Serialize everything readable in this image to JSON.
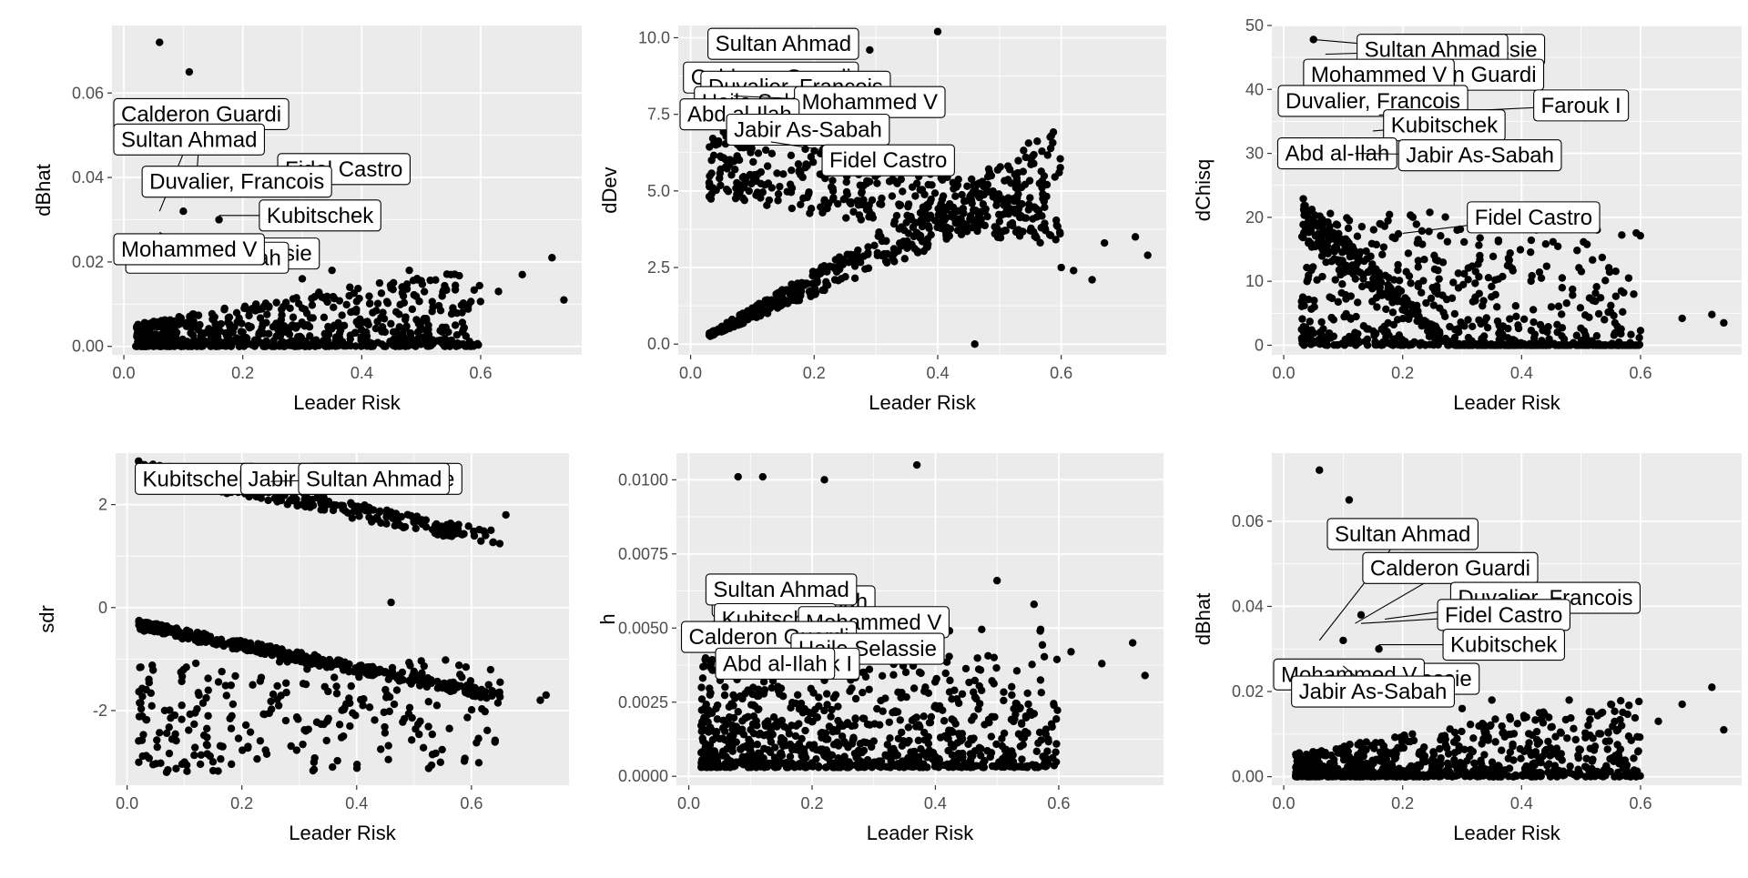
{
  "figure": {
    "background": "#ffffff",
    "panel_background": "#ebebeb",
    "grid_color": "#ffffff",
    "point_color": "#000000",
    "label_fill": "#ffffff",
    "label_border": "#000000"
  },
  "chart_data": [
    {
      "type": "scatter",
      "xlabel": "Leader Risk",
      "ylabel": "dBhat",
      "xlim": [
        -0.02,
        0.77
      ],
      "ylim": [
        -0.002,
        0.076
      ],
      "x_ticks": [
        0.0,
        0.2,
        0.4,
        0.6
      ],
      "x_tick_labels": [
        "0.0",
        "0.2",
        "0.4",
        "0.6"
      ],
      "y_ticks": [
        0.0,
        0.02,
        0.04,
        0.06
      ],
      "y_tick_labels": [
        "0.00",
        "0.02",
        "0.04",
        "0.06"
      ],
      "points": [
        [
          0.06,
          0.072
        ],
        [
          0.11,
          0.065
        ],
        [
          0.72,
          0.021
        ],
        [
          0.74,
          0.011
        ],
        [
          0.67,
          0.017
        ],
        [
          0.63,
          0.013
        ],
        [
          0.55,
          0.017
        ],
        [
          0.48,
          0.018
        ],
        [
          0.43,
          0.015
        ],
        [
          0.38,
          0.014
        ],
        [
          0.35,
          0.018
        ],
        [
          0.3,
          0.016
        ],
        [
          0.22,
          0.02
        ],
        [
          0.16,
          0.03
        ],
        [
          0.13,
          0.038
        ],
        [
          0.1,
          0.032
        ]
      ],
      "cluster": {
        "count": 750,
        "x_range": [
          0.02,
          0.6
        ],
        "y_max": 0.02
      },
      "labels": [
        {
          "text": "Calderon Guardi",
          "x": 0.12,
          "y": 0.036,
          "lx": 0.11,
          "ly": 0.055
        },
        {
          "text": "Sultan Ahmad",
          "x": 0.06,
          "y": 0.032,
          "lx": 0.05,
          "ly": 0.049
        },
        {
          "text": "Fidel Castro",
          "x": 0.13,
          "y": 0.036,
          "lx": 0.37,
          "ly": 0.042
        },
        {
          "text": "Duvalier, Francois",
          "x": 0.17,
          "y": 0.037,
          "lx": 0.19,
          "ly": 0.039
        },
        {
          "text": "Kubitschek",
          "x": 0.16,
          "y": 0.031,
          "lx": 0.33,
          "ly": 0.031
        },
        {
          "text": "Haile Selassie",
          "x": 0.12,
          "y": 0.024,
          "lx": 0.2,
          "ly": 0.022
        },
        {
          "text": "Jabir As-Sabah",
          "x": 0.1,
          "y": 0.026,
          "lx": 0.14,
          "ly": 0.021
        },
        {
          "text": "Mohammed V",
          "x": 0.06,
          "y": 0.027,
          "lx": 0.07,
          "ly": 0.023
        }
      ]
    },
    {
      "type": "scatter",
      "xlabel": "Leader Risk",
      "ylabel": "dDev",
      "xlim": [
        -0.02,
        0.77
      ],
      "ylim": [
        -0.35,
        10.4
      ],
      "x_ticks": [
        0.0,
        0.2,
        0.4,
        0.6
      ],
      "x_tick_labels": [
        "0.0",
        "0.2",
        "0.4",
        "0.6"
      ],
      "y_ticks": [
        0.0,
        2.5,
        5.0,
        7.5,
        10.0
      ],
      "y_tick_labels": [
        "0.0",
        "2.5",
        "5.0",
        "7.5",
        "10.0"
      ],
      "points": [
        [
          0.4,
          10.2
        ],
        [
          0.29,
          9.6
        ],
        [
          0.46,
          0.0
        ],
        [
          0.72,
          3.5
        ],
        [
          0.74,
          2.9
        ],
        [
          0.67,
          3.3
        ],
        [
          0.57,
          4.9
        ],
        [
          0.55,
          3.7
        ],
        [
          0.62,
          2.4
        ],
        [
          0.65,
          2.1
        ],
        [
          0.6,
          2.5
        ],
        [
          0.5,
          4.0
        ]
      ],
      "cluster": {
        "count": 900,
        "x_range": [
          0.03,
          0.6
        ],
        "y_max": 8.0
      },
      "labels": [
        {
          "text": "Sultan Ahmad",
          "x": 0.06,
          "y": 9.4,
          "lx": 0.15,
          "ly": 9.8
        },
        {
          "text": "Calderon Guardi",
          "x": 0.1,
          "y": 8.6,
          "lx": 0.13,
          "ly": 8.7
        },
        {
          "text": "Duvalier, Francois",
          "x": 0.12,
          "y": 8.4,
          "lx": 0.17,
          "ly": 8.4
        },
        {
          "text": "Haile Selassie",
          "x": 0.1,
          "y": 7.9,
          "lx": 0.13,
          "ly": 7.9
        },
        {
          "text": "Mohammed V",
          "x": 0.07,
          "y": 8.1,
          "lx": 0.29,
          "ly": 7.9
        },
        {
          "text": "Abd al-Ilah",
          "x": 0.05,
          "y": 7.3,
          "lx": 0.06,
          "ly": 7.5
        },
        {
          "text": "Jabir As-Sabah",
          "x": 0.1,
          "y": 7.2,
          "lx": 0.19,
          "ly": 7.0
        },
        {
          "text": "Fidel Castro",
          "x": 0.13,
          "y": 6.6,
          "lx": 0.32,
          "ly": 6.0
        }
      ]
    },
    {
      "type": "scatter",
      "xlabel": "Leader Risk",
      "ylabel": "dChisq",
      "xlim": [
        -0.02,
        0.77
      ],
      "ylim": [
        -1.5,
        50
      ],
      "x_ticks": [
        0.0,
        0.2,
        0.4,
        0.6
      ],
      "x_tick_labels": [
        "0.0",
        "0.2",
        "0.4",
        "0.6"
      ],
      "y_ticks": [
        0,
        10,
        20,
        30,
        40,
        50
      ],
      "y_tick_labels": [
        "0",
        "10",
        "20",
        "30",
        "40",
        "50"
      ],
      "points": [
        [
          0.05,
          47.8
        ],
        [
          0.72,
          4.8
        ],
        [
          0.74,
          3.5
        ],
        [
          0.67,
          4.2
        ],
        [
          0.58,
          10.5
        ],
        [
          0.52,
          7.0
        ],
        [
          0.45,
          6.0
        ],
        [
          0.6,
          2.3
        ]
      ],
      "cluster": {
        "count": 900,
        "x_range": [
          0.03,
          0.6
        ],
        "y_max": 26
      },
      "labels": [
        {
          "text": "Haile Selassie",
          "x": 0.07,
          "y": 45.5,
          "lx": 0.31,
          "ly": 46.2
        },
        {
          "text": "Sultan Ahmad",
          "x": 0.05,
          "y": 47.8,
          "lx": 0.25,
          "ly": 46.2
        },
        {
          "text": "Calderon Guardi",
          "x": 0.12,
          "y": 42.0,
          "lx": 0.29,
          "ly": 42.3
        },
        {
          "text": "Mohammed V",
          "x": 0.08,
          "y": 40.5,
          "lx": 0.16,
          "ly": 42.3
        },
        {
          "text": "Duvalier, Francois",
          "x": 0.11,
          "y": 38.0,
          "lx": 0.15,
          "ly": 38.2
        },
        {
          "text": "Farouk I",
          "x": 0.16,
          "y": 36.0,
          "lx": 0.5,
          "ly": 37.5
        },
        {
          "text": "Kubitschek",
          "x": 0.15,
          "y": 33.5,
          "lx": 0.27,
          "ly": 34.4
        },
        {
          "text": "Abd al-Ilah",
          "x": 0.05,
          "y": 30.5,
          "lx": 0.09,
          "ly": 30.0
        },
        {
          "text": "Jabir As-Sabah",
          "x": 0.12,
          "y": 30.0,
          "lx": 0.33,
          "ly": 29.7
        },
        {
          "text": "Fidel Castro",
          "x": 0.2,
          "y": 17.5,
          "lx": 0.42,
          "ly": 20.0
        }
      ]
    },
    {
      "type": "scatter",
      "xlabel": "Leader Risk",
      "ylabel": "sdr",
      "xlim": [
        -0.02,
        0.77
      ],
      "ylim": [
        -3.45,
        3.0
      ],
      "x_ticks": [
        0.0,
        0.2,
        0.4,
        0.6
      ],
      "x_tick_labels": [
        "0.0",
        "0.2",
        "0.4",
        "0.6"
      ],
      "y_ticks": [
        -2,
        0,
        2
      ],
      "y_tick_labels": [
        "-2",
        "0",
        "2"
      ],
      "points": [
        [
          0.46,
          0.1
        ],
        [
          0.72,
          -1.8
        ],
        [
          0.73,
          -1.7
        ],
        [
          0.66,
          1.8
        ],
        [
          0.1,
          -3.0
        ],
        [
          0.58,
          -1.3
        ],
        [
          0.63,
          -1.5
        ],
        [
          0.65,
          -1.45
        ]
      ],
      "cluster": {
        "count": 900,
        "x_range": [
          0.02,
          0.65
        ],
        "y_max": 0
      },
      "labels": [
        {
          "text": "Kubitschek",
          "x": 0.13,
          "y": 2.5,
          "lx": 0.12,
          "ly": 2.5
        },
        {
          "text": "Jabir As-Sabah",
          "x": 0.2,
          "y": 2.4,
          "lx": 0.34,
          "ly": 2.5
        },
        {
          "text": "Haile Selassie",
          "x": 0.25,
          "y": 2.45,
          "lx": 0.45,
          "ly": 2.5
        },
        {
          "text": "Sultan Ahmad",
          "x": 0.3,
          "y": 2.5,
          "lx": 0.43,
          "ly": 2.5
        }
      ]
    },
    {
      "type": "scatter",
      "xlabel": "Leader Risk",
      "ylabel": "h",
      "xlim": [
        -0.02,
        0.77
      ],
      "ylim": [
        -0.0003,
        0.0109
      ],
      "x_ticks": [
        0.0,
        0.2,
        0.4,
        0.6
      ],
      "x_tick_labels": [
        "0.0",
        "0.2",
        "0.4",
        "0.6"
      ],
      "y_ticks": [
        0.0,
        0.0025,
        0.005,
        0.0075,
        0.01
      ],
      "y_tick_labels": [
        "0.0000",
        "0.0025",
        "0.0050",
        "0.0075",
        "0.0100"
      ],
      "points": [
        [
          0.37,
          0.0105
        ],
        [
          0.08,
          0.0101
        ],
        [
          0.12,
          0.0101
        ],
        [
          0.22,
          0.01
        ],
        [
          0.72,
          0.0045
        ],
        [
          0.74,
          0.0034
        ],
        [
          0.67,
          0.0038
        ],
        [
          0.57,
          0.0049
        ],
        [
          0.5,
          0.0066
        ],
        [
          0.62,
          0.0042
        ],
        [
          0.56,
          0.0058
        ]
      ],
      "cluster": {
        "count": 900,
        "x_range": [
          0.02,
          0.6
        ],
        "y_max": 0.0078
      },
      "labels": [
        {
          "text": "Jabir As-Sabah",
          "x": 0.1,
          "y": 0.0058,
          "lx": 0.17,
          "ly": 0.0059
        },
        {
          "text": "Sultan Ahmad",
          "x": 0.06,
          "y": 0.006,
          "lx": 0.15,
          "ly": 0.0063
        },
        {
          "text": "Kubitschek",
          "x": 0.1,
          "y": 0.0052,
          "lx": 0.14,
          "ly": 0.0053
        },
        {
          "text": "Mohammed V",
          "x": 0.1,
          "y": 0.0048,
          "lx": 0.3,
          "ly": 0.0052
        },
        {
          "text": "Calderon Guardi",
          "x": 0.09,
          "y": 0.0045,
          "lx": 0.13,
          "ly": 0.0047
        },
        {
          "text": "Haile Selassie",
          "x": 0.12,
          "y": 0.004,
          "lx": 0.29,
          "ly": 0.0043
        },
        {
          "text": "Farouk I",
          "x": 0.15,
          "y": 0.0035,
          "lx": 0.2,
          "ly": 0.0038
        },
        {
          "text": "Abd al-Ilah",
          "x": 0.1,
          "y": 0.0034,
          "lx": 0.14,
          "ly": 0.0038
        }
      ]
    },
    {
      "type": "scatter",
      "xlabel": "Leader Risk",
      "ylabel": "dBhat",
      "xlim": [
        -0.02,
        0.77
      ],
      "ylim": [
        -0.002,
        0.076
      ],
      "x_ticks": [
        0.0,
        0.2,
        0.4,
        0.6
      ],
      "x_tick_labels": [
        "0.0",
        "0.2",
        "0.4",
        "0.6"
      ],
      "y_ticks": [
        0.0,
        0.02,
        0.04,
        0.06
      ],
      "y_tick_labels": [
        "0.00",
        "0.02",
        "0.04",
        "0.06"
      ],
      "points": [
        [
          0.06,
          0.072
        ],
        [
          0.11,
          0.065
        ],
        [
          0.72,
          0.021
        ],
        [
          0.74,
          0.011
        ],
        [
          0.67,
          0.017
        ],
        [
          0.63,
          0.013
        ],
        [
          0.55,
          0.017
        ],
        [
          0.48,
          0.018
        ],
        [
          0.43,
          0.015
        ],
        [
          0.38,
          0.014
        ],
        [
          0.35,
          0.018
        ],
        [
          0.3,
          0.016
        ],
        [
          0.22,
          0.02
        ],
        [
          0.16,
          0.03
        ],
        [
          0.13,
          0.038
        ],
        [
          0.1,
          0.032
        ]
      ],
      "cluster": {
        "count": 750,
        "x_range": [
          0.02,
          0.6
        ],
        "y_max": 0.02
      },
      "labels": [
        {
          "text": "Sultan Ahmad",
          "x": 0.06,
          "y": 0.032,
          "lx": 0.2,
          "ly": 0.057
        },
        {
          "text": "Calderon Guardi",
          "x": 0.12,
          "y": 0.036,
          "lx": 0.28,
          "ly": 0.049
        },
        {
          "text": "Duvalier, Francois",
          "x": 0.17,
          "y": 0.037,
          "lx": 0.44,
          "ly": 0.042
        },
        {
          "text": "Fidel Castro",
          "x": 0.13,
          "y": 0.036,
          "lx": 0.37,
          "ly": 0.038
        },
        {
          "text": "Kubitschek",
          "x": 0.16,
          "y": 0.031,
          "lx": 0.37,
          "ly": 0.031
        },
        {
          "text": "Haile Selassie",
          "x": 0.12,
          "y": 0.024,
          "lx": 0.2,
          "ly": 0.023
        },
        {
          "text": "Mohammed V",
          "x": 0.06,
          "y": 0.027,
          "lx": 0.1,
          "ly": 0.024
        },
        {
          "text": "Jabir As-Sabah",
          "x": 0.1,
          "y": 0.026,
          "lx": 0.15,
          "ly": 0.02
        }
      ]
    }
  ]
}
